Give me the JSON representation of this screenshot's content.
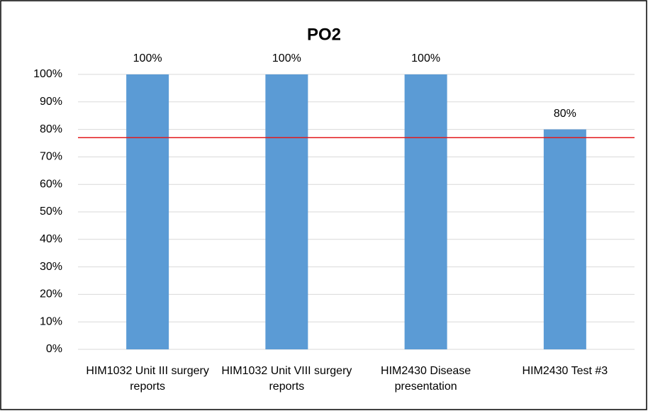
{
  "chart_data": {
    "type": "bar",
    "title": "PO2",
    "categories": [
      "HIM1032 Unit III surgery reports",
      "HIM1032 Unit VIII surgery reports",
      "HIM2430 Disease presentation",
      "HIM2430 Test #3"
    ],
    "values": [
      100,
      100,
      100,
      80
    ],
    "value_labels": [
      "100%",
      "100%",
      "100%",
      "80%"
    ],
    "color": "#5b9bd5",
    "ylim": [
      0,
      100
    ],
    "yticks": [
      {
        "value": 0,
        "label": "0%"
      },
      {
        "value": 10,
        "label": "10%"
      },
      {
        "value": 20,
        "label": "20%"
      },
      {
        "value": 30,
        "label": "30%"
      },
      {
        "value": 40,
        "label": "40%"
      },
      {
        "value": 50,
        "label": "50%"
      },
      {
        "value": 60,
        "label": "60%"
      },
      {
        "value": 70,
        "label": "70%"
      },
      {
        "value": 80,
        "label": "80%"
      },
      {
        "value": 90,
        "label": "90%"
      },
      {
        "value": 100,
        "label": "100%"
      }
    ],
    "grid": true,
    "reference_line": {
      "value": 77,
      "color": "#e31a1c"
    }
  }
}
